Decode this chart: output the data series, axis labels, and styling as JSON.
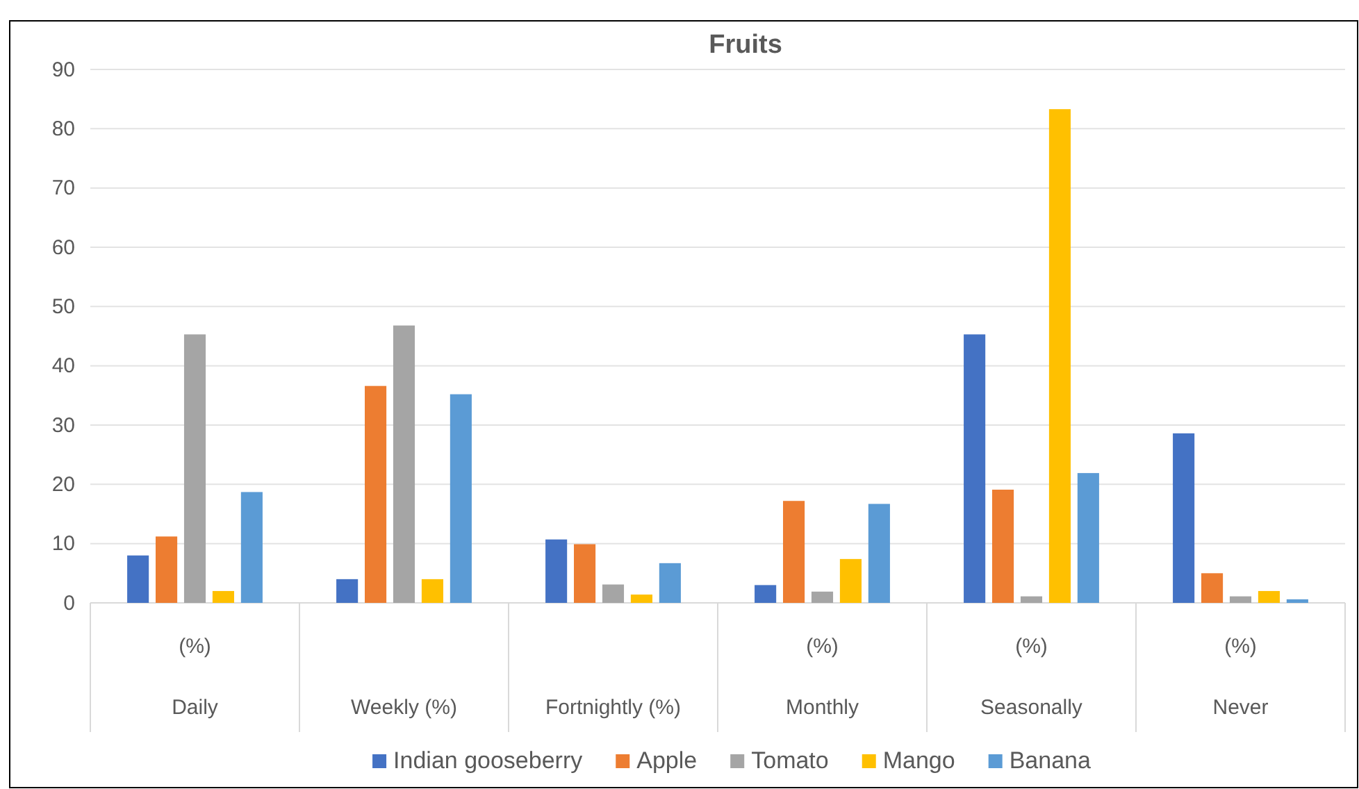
{
  "chart_data": {
    "type": "bar",
    "title": "Fruits",
    "categories": [
      "(%)\nDaily",
      "Weekly (%)",
      "Fortnightly (%)",
      "(%)\nMonthly",
      "(%)\nSeasonally",
      "(%)\nNever"
    ],
    "series": [
      {
        "name": "Indian gooseberry",
        "color": "#4472c4",
        "values": [
          8.0,
          4.0,
          10.7,
          3.0,
          45.3,
          28.6
        ]
      },
      {
        "name": "Apple",
        "color": "#ed7d31",
        "values": [
          11.2,
          36.6,
          9.9,
          17.2,
          19.1,
          5.0
        ]
      },
      {
        "name": "Tomato",
        "color": "#a5a5a5",
        "values": [
          45.3,
          46.8,
          3.1,
          1.9,
          1.1,
          1.1
        ]
      },
      {
        "name": "Mango",
        "color": "#ffc000",
        "values": [
          2.0,
          4.0,
          1.4,
          7.4,
          83.3,
          2.0
        ]
      },
      {
        "name": "Banana",
        "color": "#5b9bd5",
        "values": [
          18.7,
          35.2,
          6.7,
          16.7,
          21.9,
          0.6
        ]
      }
    ],
    "ylim": [
      0,
      90
    ],
    "yticks": [
      0,
      10,
      20,
      30,
      40,
      50,
      60,
      70,
      80,
      90
    ],
    "grid": "y",
    "legend": "bottom"
  }
}
